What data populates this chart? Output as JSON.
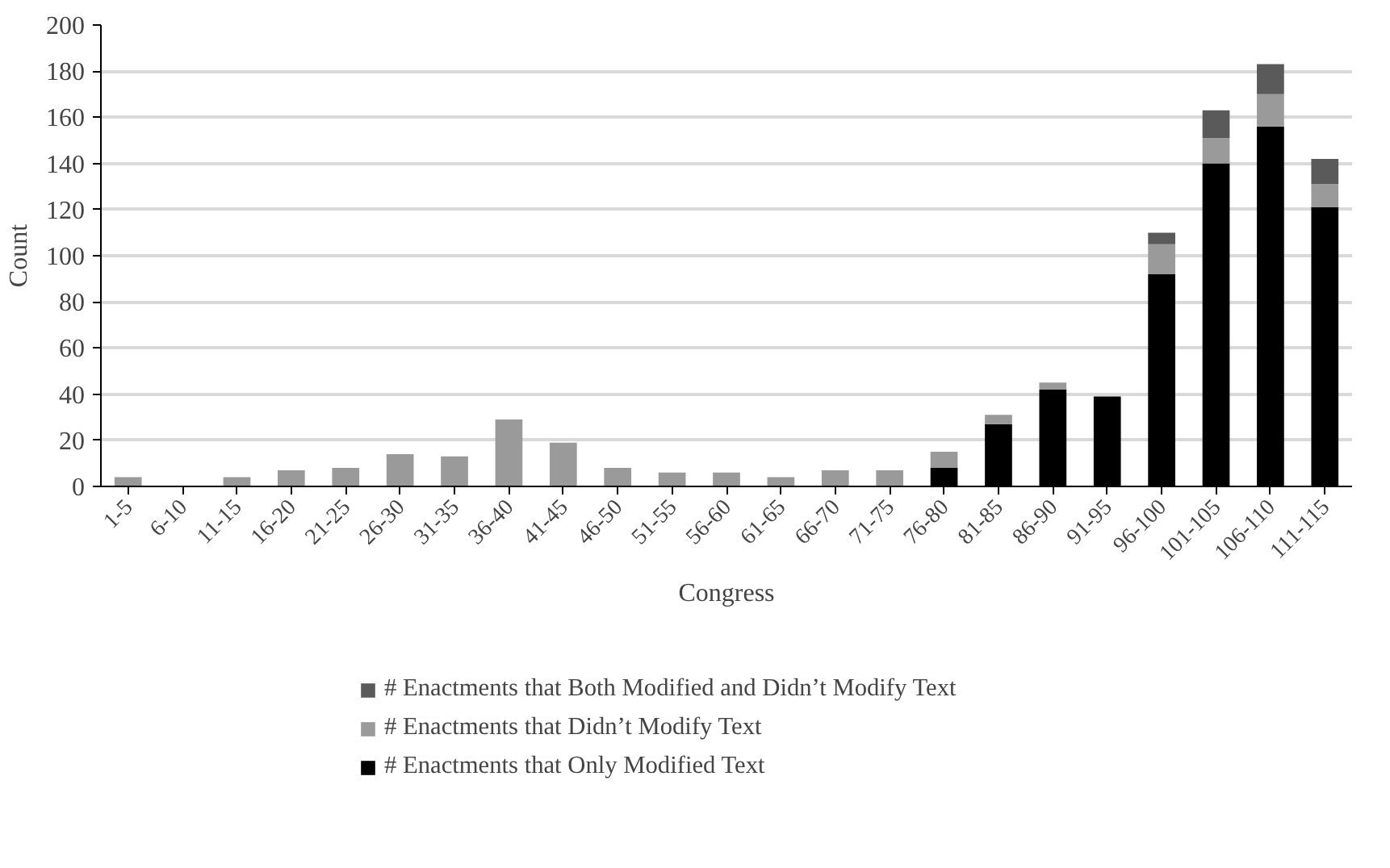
{
  "chart_data": {
    "type": "bar",
    "stacked": true,
    "xlabel": "Congress",
    "ylabel": "Count",
    "categories": [
      "1-5",
      "6-10",
      "11-15",
      "16-20",
      "21-25",
      "26-30",
      "31-35",
      "36-40",
      "41-45",
      "46-50",
      "51-55",
      "56-60",
      "61-65",
      "66-70",
      "71-75",
      "76-80",
      "81-85",
      "86-90",
      "91-95",
      "96-100",
      "101-105",
      "106-110",
      "111-115"
    ],
    "series": [
      {
        "name": "# Enactments that Only Modified Text",
        "color": "#000000",
        "values": [
          0,
          0,
          0,
          0,
          0,
          0,
          0,
          0,
          0,
          0,
          0,
          0,
          0,
          0,
          0,
          8,
          27,
          42,
          39,
          92,
          140,
          156,
          121
        ]
      },
      {
        "name": "# Enactments that Didn’t Modify Text",
        "color": "#9a9a9a",
        "values": [
          4,
          0,
          4,
          7,
          8,
          14,
          13,
          29,
          19,
          8,
          6,
          6,
          4,
          7,
          7,
          7,
          4,
          3,
          0,
          13,
          11,
          14,
          10
        ]
      },
      {
        "name": "# Enactments that Both Modified and Didn’t Modify Text",
        "color": "#5a5a5a",
        "values": [
          0,
          0,
          0,
          0,
          0,
          0,
          0,
          0,
          0,
          0,
          0,
          0,
          0,
          0,
          0,
          0,
          0,
          0,
          0,
          5,
          12,
          13,
          11
        ]
      }
    ],
    "ylim": [
      0,
      200
    ],
    "yticks": [
      0,
      20,
      40,
      60,
      80,
      100,
      120,
      140,
      160,
      180,
      200
    ],
    "grid": "y",
    "legend": "bottom"
  }
}
